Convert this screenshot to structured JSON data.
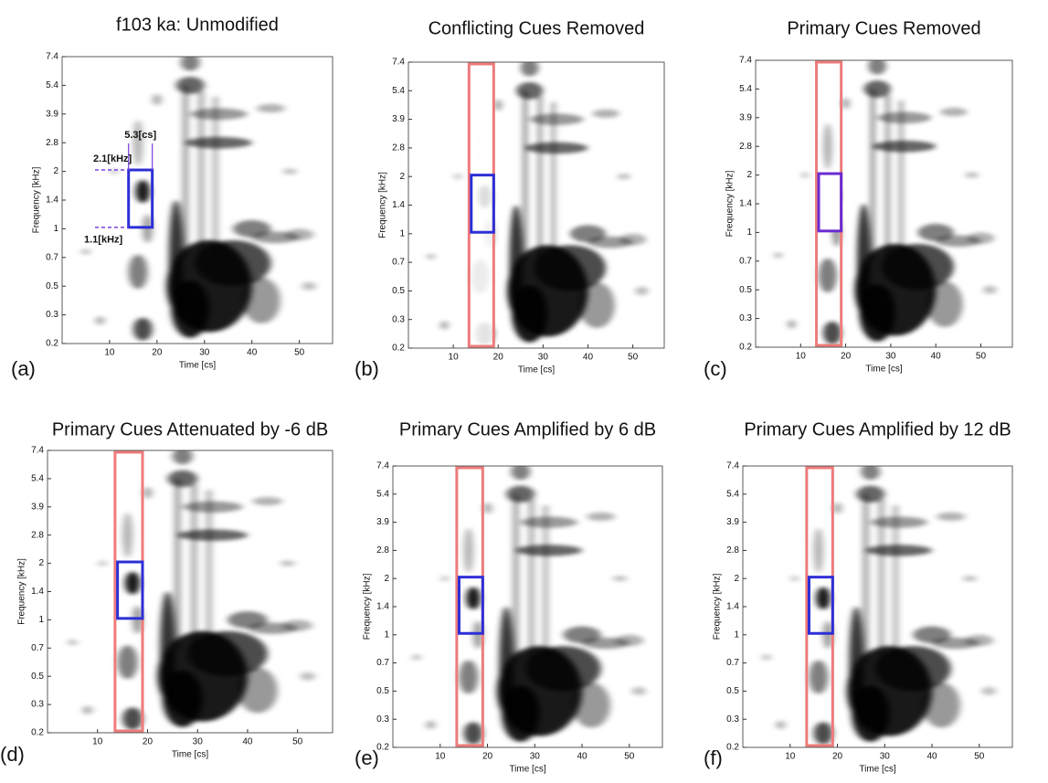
{
  "panels": [
    {
      "title": "f103 ka: Unmodified",
      "label": "(a)",
      "annotations": [
        "5.3[cs]",
        "2.1[kHz]",
        "1.1[kHz]"
      ]
    },
    {
      "title": "Conflicting Cues Removed",
      "label": "(b)"
    },
    {
      "title": "Primary Cues Removed",
      "label": "(c)"
    },
    {
      "title": "Primary Cues Attenuated by -6 dB",
      "label": "(d)"
    },
    {
      "title": "Primary Cues Amplified by 6 dB",
      "label": "(e)"
    },
    {
      "title": "Primary Cues Amplified by 12 dB",
      "label": "(f)"
    }
  ],
  "y_axis_label": "Frequency [kHz]",
  "x_axis_label": "Time [cs]",
  "y_ticks": [
    "0.2",
    "0.3",
    "0.5",
    "0.7",
    "1",
    "1.4",
    "2",
    "2.8",
    "3.9",
    "5.4",
    "7.4"
  ],
  "x_ticks": [
    "10",
    "20",
    "30",
    "40",
    "50"
  ]
}
